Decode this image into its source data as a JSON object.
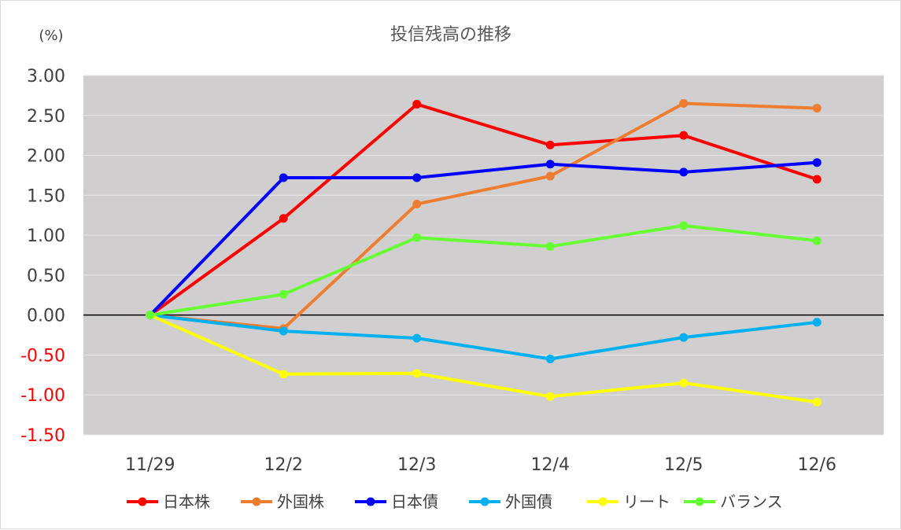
{
  "chart_data": {
    "type": "line",
    "title": "投信残高の推移",
    "unit_label": "(%)",
    "categories": [
      "11/29",
      "12/2",
      "12/3",
      "12/4",
      "12/5",
      "12/6"
    ],
    "ylim": [
      -1.5,
      3.0
    ],
    "yticks": [
      "3.00",
      "2.50",
      "2.00",
      "1.50",
      "1.00",
      "0.50",
      "0.00",
      "-0.50",
      "-1.00",
      "-1.50"
    ],
    "ytick_values": [
      3.0,
      2.5,
      2.0,
      1.5,
      1.0,
      0.5,
      0.0,
      -0.5,
      -1.0,
      -1.5
    ],
    "grid": true,
    "legend_position": "bottom",
    "plot_background": "#d0cece",
    "positive_tick_color": "#404040",
    "negative_tick_color": "#ff0000",
    "series": [
      {
        "name": "日本株",
        "color": "#ff0000",
        "values": [
          0.0,
          1.21,
          2.64,
          2.13,
          2.25,
          1.7
        ]
      },
      {
        "name": "外国株",
        "color": "#ed7d31",
        "values": [
          0.0,
          -0.17,
          1.39,
          1.74,
          2.65,
          2.59
        ]
      },
      {
        "name": "日本債",
        "color": "#0000ff",
        "values": [
          0.0,
          1.72,
          1.72,
          1.89,
          1.79,
          1.91
        ]
      },
      {
        "name": "外国債",
        "color": "#00b0f0",
        "values": [
          0.0,
          -0.2,
          -0.29,
          -0.55,
          -0.28,
          -0.09
        ]
      },
      {
        "name": "リート",
        "color": "#ffff00",
        "values": [
          0.0,
          -0.74,
          -0.73,
          -1.02,
          -0.85,
          -1.09
        ]
      },
      {
        "name": "バランス",
        "color": "#66ff33",
        "values": [
          0.0,
          0.26,
          0.97,
          0.86,
          1.12,
          0.93
        ]
      }
    ]
  }
}
